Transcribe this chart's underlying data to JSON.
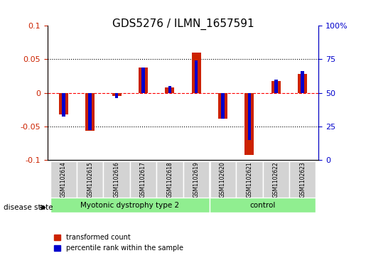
{
  "title": "GDS5276 / ILMN_1657591",
  "samples": [
    "GSM1102614",
    "GSM1102615",
    "GSM1102616",
    "GSM1102617",
    "GSM1102618",
    "GSM1102619",
    "GSM1102620",
    "GSM1102621",
    "GSM1102622",
    "GSM1102623"
  ],
  "red_values": [
    -0.032,
    -0.057,
    -0.005,
    0.038,
    0.008,
    0.06,
    -0.038,
    -0.093,
    0.018,
    0.028
  ],
  "blue_values": [
    -0.035,
    -0.055,
    -0.008,
    0.038,
    0.01,
    0.048,
    -0.038,
    -0.07,
    0.02,
    0.033
  ],
  "ylim_left": [
    -0.1,
    0.1
  ],
  "ylim_right": [
    0,
    100
  ],
  "yticks_left": [
    -0.1,
    -0.05,
    0,
    0.05,
    0.1
  ],
  "yticks_right": [
    0,
    25,
    50,
    75,
    100
  ],
  "ytick_labels_left": [
    "-0.1",
    "-0.05",
    "0",
    "0.05",
    "0.1"
  ],
  "ytick_labels_right": [
    "0",
    "25",
    "50",
    "75",
    "100%"
  ],
  "hlines": [
    0.05,
    0,
    -0.05
  ],
  "hline_styles": [
    "dotted",
    "dashed_red",
    "dotted"
  ],
  "group1_label": "Myotonic dystrophy type 2",
  "group2_label": "control",
  "group1_indices": [
    0,
    1,
    2,
    3,
    4,
    5
  ],
  "group2_indices": [
    6,
    7,
    8,
    9
  ],
  "disease_state_label": "disease state",
  "legend_red": "transformed count",
  "legend_blue": "percentile rank within the sample",
  "bar_width": 0.35,
  "red_color": "#CC2200",
  "blue_color": "#0000CC",
  "group_color": "#90EE90",
  "sample_bg_color": "#D3D3D3",
  "plot_bg_color": "#FFFFFF"
}
